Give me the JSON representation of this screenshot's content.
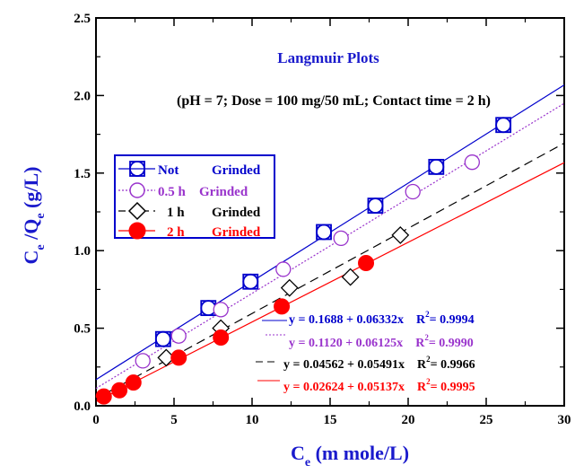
{
  "chart_data": {
    "type": "scatter",
    "title": "Langmuir Plots",
    "subtitle": "(pH = 7; Dose = 100 mg/50 mL; Contact time = 2 h)",
    "xlabel": {
      "main": "C",
      "sub": "e",
      "rest": " (m mole/L)"
    },
    "ylabel": {
      "c": "C",
      "e1": "e",
      "slash": " /Q",
      "e2": "e",
      "unit": " (g/L)"
    },
    "xlim": [
      0,
      30
    ],
    "ylim": [
      0,
      2.5
    ],
    "x_ticks": [
      0,
      5,
      10,
      15,
      20,
      25,
      30
    ],
    "x_tick_labels": [
      "0",
      "5",
      "10",
      "15",
      "20",
      "25",
      "30"
    ],
    "y_ticks": [
      0,
      0.5,
      1.0,
      1.5,
      2.0,
      2.5
    ],
    "y_tick_labels": [
      "0.0",
      "0.5",
      "1.0",
      "1.5",
      "2.0",
      "2.5"
    ],
    "grid": false,
    "legend_position": "upper-left",
    "series": [
      {
        "name": "Not Grinded",
        "legend_a": "Not",
        "legend_b": "Grinded",
        "color": "#0000cc",
        "marker": "square-circle",
        "line_style": "solid",
        "x": [
          4.3,
          7.2,
          9.9,
          14.6,
          17.9,
          21.8,
          26.1
        ],
        "y": [
          0.43,
          0.63,
          0.8,
          1.12,
          1.29,
          1.54,
          1.81
        ],
        "fit": {
          "intercept": 0.1688,
          "slope": 0.06332
        },
        "equation": "y = 0.1688 + 0.06332x",
        "r2_label": "R",
        "r2_value": "= 0.9994"
      },
      {
        "name": "0.5 h Grinded",
        "legend_a": "0.5 h",
        "legend_b": "Grinded",
        "color": "#9933cc",
        "marker": "open-circle",
        "line_style": "dotted",
        "x": [
          3.0,
          5.3,
          8.0,
          12.0,
          15.7,
          20.3,
          24.1
        ],
        "y": [
          0.29,
          0.45,
          0.62,
          0.88,
          1.08,
          1.38,
          1.57
        ],
        "fit": {
          "intercept": 0.112,
          "slope": 0.06125
        },
        "equation": "y = 0.1120 + 0.06125x",
        "r2_label": "R",
        "r2_value": "= 0.9990"
      },
      {
        "name": "1 h Grinded",
        "legend_a": "1 h",
        "legend_b": "Grinded",
        "color": "#000000",
        "marker": "open-diamond",
        "line_style": "dashed",
        "x": [
          4.5,
          8.0,
          12.4,
          16.3,
          19.5
        ],
        "y": [
          0.31,
          0.5,
          0.76,
          0.83,
          1.1
        ],
        "fit": {
          "intercept": 0.04562,
          "slope": 0.05491
        },
        "equation": "y = 0.04562 + 0.05491x",
        "r2_label": "R",
        "r2_value": "= 0.9966"
      },
      {
        "name": "2 h Grinded",
        "legend_a": "2 h",
        "legend_b": "Grinded",
        "color": "#ff0000",
        "marker": "filled-circle",
        "line_style": "solid",
        "x": [
          0.5,
          1.5,
          2.4,
          5.3,
          8.0,
          11.9,
          17.3
        ],
        "y": [
          0.06,
          0.1,
          0.15,
          0.31,
          0.44,
          0.64,
          0.92
        ],
        "fit": {
          "intercept": 0.02624,
          "slope": 0.05137
        },
        "equation": "y = 0.02624 + 0.05137x",
        "r2_label": "R",
        "r2_value": "= 0.9995"
      }
    ]
  }
}
